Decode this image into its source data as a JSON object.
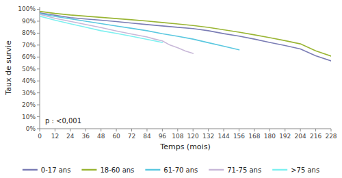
{
  "chart_data": {
    "type": "line",
    "xlabel": "Temps (mois)",
    "ylabel": "Taux de survie",
    "annotation": "p : <0,001",
    "xlim": [
      0,
      228
    ],
    "ylim": [
      0.0,
      1.02
    ],
    "xticks": [
      0,
      12,
      24,
      36,
      48,
      60,
      72,
      84,
      96,
      108,
      120,
      132,
      144,
      156,
      168,
      180,
      192,
      204,
      216,
      228
    ],
    "yticks": [
      {
        "value": 0,
        "label": "0%"
      },
      {
        "value": 0.1,
        "label": "10%"
      },
      {
        "value": 0.2,
        "label": "20%"
      },
      {
        "value": 0.3,
        "label": "30%"
      },
      {
        "value": 0.4,
        "label": "40%"
      },
      {
        "value": 0.5,
        "label": "50%"
      },
      {
        "value": 0.6,
        "label": "60%"
      },
      {
        "value": 0.7,
        "label": "70%"
      },
      {
        "value": 0.8,
        "label": "80%"
      },
      {
        "value": 0.9,
        "label": "90%"
      },
      {
        "value": 1.0,
        "label": "100%"
      }
    ],
    "grid": false,
    "legend": "bottom",
    "series": [
      {
        "name": "0-17 ans",
        "color": "#7b7db5",
        "x": [
          0,
          12,
          24,
          36,
          48,
          60,
          72,
          84,
          96,
          108,
          120,
          132,
          144,
          156,
          168,
          180,
          192,
          204,
          216,
          228
        ],
        "values": [
          0.97,
          0.95,
          0.93,
          0.918,
          0.908,
          0.897,
          0.884,
          0.872,
          0.86,
          0.849,
          0.838,
          0.82,
          0.796,
          0.775,
          0.75,
          0.722,
          0.696,
          0.668,
          0.61,
          0.568
        ]
      },
      {
        "name": "18-60 ans",
        "color": "#9ab534",
        "x": [
          0,
          12,
          24,
          36,
          48,
          60,
          72,
          84,
          96,
          108,
          120,
          132,
          144,
          156,
          168,
          180,
          192,
          204,
          216,
          228
        ],
        "values": [
          0.982,
          0.965,
          0.952,
          0.942,
          0.932,
          0.922,
          0.912,
          0.901,
          0.889,
          0.877,
          0.864,
          0.848,
          0.828,
          0.808,
          0.786,
          0.762,
          0.737,
          0.71,
          0.652,
          0.608
        ]
      },
      {
        "name": "61-70 ans",
        "color": "#5bc8e0",
        "x": [
          0,
          12,
          24,
          36,
          48,
          60,
          72,
          84,
          96,
          108,
          120,
          132,
          144,
          156
        ],
        "values": [
          0.964,
          0.94,
          0.92,
          0.9,
          0.88,
          0.86,
          0.84,
          0.82,
          0.795,
          0.774,
          0.75,
          0.72,
          0.69,
          0.66
        ]
      },
      {
        "name": "71-75 ans",
        "color": "#c8b8d8",
        "x": [
          0,
          12,
          24,
          36,
          48,
          60,
          72,
          84,
          90,
          96,
          102,
          108,
          114,
          120
        ],
        "values": [
          0.958,
          0.924,
          0.898,
          0.872,
          0.847,
          0.818,
          0.792,
          0.768,
          0.75,
          0.735,
          0.7,
          0.678,
          0.65,
          0.63
        ]
      },
      {
        "name": ">75 ans",
        "color": "#7ef0f0",
        "x": [
          0,
          12,
          24,
          36,
          48,
          60,
          72,
          84,
          96
        ],
        "values": [
          0.942,
          0.908,
          0.878,
          0.85,
          0.82,
          0.798,
          0.774,
          0.748,
          0.722
        ]
      }
    ]
  }
}
